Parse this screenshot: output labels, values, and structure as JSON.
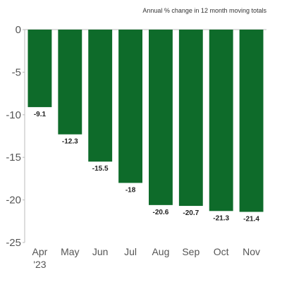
{
  "chart_data": {
    "type": "bar",
    "subtitle": "Annual % change in 12 month moving totals",
    "categories": [
      "Apr",
      "May",
      "Jun",
      "Jul",
      "Aug",
      "Sep",
      "Oct",
      "Nov"
    ],
    "category_sublabels": [
      "'23",
      "",
      "",
      "",
      "",
      "",
      "",
      ""
    ],
    "values": [
      -9.1,
      -12.3,
      -15.5,
      -18,
      -20.6,
      -20.7,
      -21.3,
      -21.4
    ],
    "data_labels": [
      "-9.1",
      "-12.3",
      "-15.5",
      "-18",
      "-20.6",
      "-20.7",
      "-21.3",
      "-21.4"
    ],
    "ylim": [
      -25,
      0
    ],
    "yticks": [
      0,
      -5,
      -10,
      -15,
      -20,
      -25
    ],
    "ytick_labels": [
      "0",
      "-5",
      "-10",
      "-15",
      "-20",
      "-25"
    ],
    "bar_color": "#0e6b2a",
    "grid": false
  }
}
